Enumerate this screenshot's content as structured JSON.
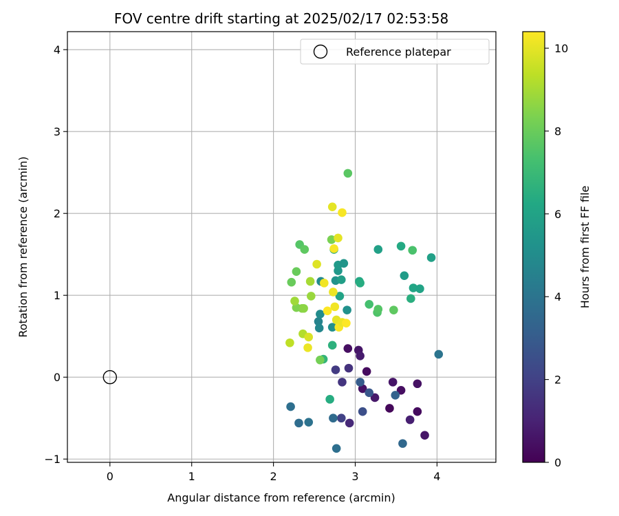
{
  "chart_data": {
    "type": "scatter",
    "title": "FOV centre drift starting at 2025/02/17 02:53:58",
    "xlabel": "Angular distance from reference (arcmin)",
    "ylabel": "Rotation from reference (arcmin)",
    "xlim": [
      -0.52,
      4.72
    ],
    "ylim": [
      -1.04,
      4.22
    ],
    "xticks": [
      0,
      1,
      2,
      3,
      4
    ],
    "yticks": [
      -1,
      0,
      1,
      2,
      3,
      4
    ],
    "xtick_labels": [
      "0",
      "1",
      "2",
      "3",
      "4"
    ],
    "ytick_labels": [
      "−1",
      "0",
      "1",
      "2",
      "3",
      "4"
    ],
    "grid": true,
    "legend": {
      "placement": "top-right",
      "label": "Reference platepar"
    },
    "reference_point": {
      "x": 0,
      "y": 0
    },
    "colorbar": {
      "label": "Hours from first FF file",
      "colormap": "viridis",
      "min": 0,
      "max": 10.4,
      "ticks": [
        0,
        2,
        4,
        6,
        8,
        10
      ],
      "tick_labels": [
        "0",
        "2",
        "4",
        "6",
        "8",
        "10"
      ]
    },
    "points": [
      {
        "x": 2.91,
        "y": 0.35,
        "c": 0.4
      },
      {
        "x": 3.04,
        "y": 0.33,
        "c": 0.6
      },
      {
        "x": 3.06,
        "y": 0.26,
        "c": 0.8
      },
      {
        "x": 3.14,
        "y": 0.07,
        "c": 0.3
      },
      {
        "x": 3.09,
        "y": -0.14,
        "c": 0.5
      },
      {
        "x": 3.24,
        "y": -0.25,
        "c": 0.7
      },
      {
        "x": 3.42,
        "y": -0.38,
        "c": 0.2
      },
      {
        "x": 3.46,
        "y": -0.06,
        "c": 0.6
      },
      {
        "x": 3.56,
        "y": -0.16,
        "c": 0.4
      },
      {
        "x": 3.76,
        "y": -0.08,
        "c": 0.5
      },
      {
        "x": 3.67,
        "y": -0.52,
        "c": 0.9
      },
      {
        "x": 3.76,
        "y": -0.42,
        "c": 0.3
      },
      {
        "x": 3.85,
        "y": -0.71,
        "c": 0.6
      },
      {
        "x": 2.76,
        "y": 0.09,
        "c": 1.8
      },
      {
        "x": 2.92,
        "y": 0.11,
        "c": 1.5
      },
      {
        "x": 2.84,
        "y": -0.06,
        "c": 1.6
      },
      {
        "x": 2.93,
        "y": -0.56,
        "c": 1.2
      },
      {
        "x": 2.83,
        "y": -0.5,
        "c": 2.0
      },
      {
        "x": 3.09,
        "y": -0.42,
        "c": 2.5
      },
      {
        "x": 3.17,
        "y": -0.19,
        "c": 2.8
      },
      {
        "x": 3.06,
        "y": -0.06,
        "c": 3.0
      },
      {
        "x": 3.49,
        "y": -0.22,
        "c": 3.3
      },
      {
        "x": 3.58,
        "y": -0.81,
        "c": 3.5
      },
      {
        "x": 2.21,
        "y": -0.36,
        "c": 3.8
      },
      {
        "x": 2.31,
        "y": -0.56,
        "c": 3.7
      },
      {
        "x": 2.43,
        "y": -0.55,
        "c": 3.9
      },
      {
        "x": 2.73,
        "y": -0.5,
        "c": 3.6
      },
      {
        "x": 2.77,
        "y": -0.87,
        "c": 3.8
      },
      {
        "x": 4.02,
        "y": 0.28,
        "c": 4.0
      },
      {
        "x": 2.55,
        "y": 0.68,
        "c": 4.6
      },
      {
        "x": 2.56,
        "y": 0.6,
        "c": 4.8
      },
      {
        "x": 2.57,
        "y": 0.77,
        "c": 5.0
      },
      {
        "x": 2.72,
        "y": 0.61,
        "c": 5.1
      },
      {
        "x": 2.9,
        "y": 0.82,
        "c": 5.2
      },
      {
        "x": 2.58,
        "y": 1.17,
        "c": 4.9
      },
      {
        "x": 2.76,
        "y": 1.18,
        "c": 5.3
      },
      {
        "x": 2.79,
        "y": 1.3,
        "c": 5.5
      },
      {
        "x": 2.79,
        "y": 1.37,
        "c": 5.6
      },
      {
        "x": 2.86,
        "y": 1.39,
        "c": 5.4
      },
      {
        "x": 2.83,
        "y": 1.19,
        "c": 5.8
      },
      {
        "x": 2.81,
        "y": 0.99,
        "c": 6.0
      },
      {
        "x": 3.05,
        "y": 1.17,
        "c": 6.2
      },
      {
        "x": 3.06,
        "y": 1.15,
        "c": 6.4
      },
      {
        "x": 3.28,
        "y": 1.56,
        "c": 5.9
      },
      {
        "x": 3.56,
        "y": 1.6,
        "c": 6.3
      },
      {
        "x": 3.6,
        "y": 1.24,
        "c": 5.7
      },
      {
        "x": 3.71,
        "y": 1.09,
        "c": 6.1
      },
      {
        "x": 3.79,
        "y": 1.08,
        "c": 6.0
      },
      {
        "x": 3.68,
        "y": 0.96,
        "c": 6.5
      },
      {
        "x": 3.93,
        "y": 1.46,
        "c": 5.9
      },
      {
        "x": 2.74,
        "y": 1.56,
        "c": 6.2
      },
      {
        "x": 2.69,
        "y": -0.27,
        "c": 6.4
      },
      {
        "x": 2.72,
        "y": 0.39,
        "c": 6.6
      },
      {
        "x": 2.61,
        "y": 0.22,
        "c": 6.8
      },
      {
        "x": 3.17,
        "y": 0.89,
        "c": 7.3
      },
      {
        "x": 3.27,
        "y": 0.79,
        "c": 7.5
      },
      {
        "x": 3.28,
        "y": 0.83,
        "c": 7.6
      },
      {
        "x": 3.47,
        "y": 0.82,
        "c": 7.8
      },
      {
        "x": 3.7,
        "y": 1.55,
        "c": 7.4
      },
      {
        "x": 2.91,
        "y": 2.49,
        "c": 7.7
      },
      {
        "x": 2.32,
        "y": 1.62,
        "c": 7.6
      },
      {
        "x": 2.38,
        "y": 1.56,
        "c": 7.8
      },
      {
        "x": 2.28,
        "y": 1.29,
        "c": 8.0
      },
      {
        "x": 2.22,
        "y": 1.16,
        "c": 8.0
      },
      {
        "x": 2.57,
        "y": 0.21,
        "c": 8.2
      },
      {
        "x": 2.71,
        "y": 1.68,
        "c": 8.3
      },
      {
        "x": 2.35,
        "y": 0.84,
        "c": 8.5
      },
      {
        "x": 2.28,
        "y": 0.85,
        "c": 8.4
      },
      {
        "x": 2.37,
        "y": 0.84,
        "c": 8.6
      },
      {
        "x": 2.26,
        "y": 0.93,
        "c": 8.9
      },
      {
        "x": 2.46,
        "y": 0.99,
        "c": 8.8
      },
      {
        "x": 2.45,
        "y": 1.17,
        "c": 9.0
      },
      {
        "x": 2.36,
        "y": 0.53,
        "c": 9.2
      },
      {
        "x": 2.2,
        "y": 0.42,
        "c": 9.4
      },
      {
        "x": 2.43,
        "y": 0.49,
        "c": 9.8
      },
      {
        "x": 2.42,
        "y": 0.36,
        "c": 10.1
      },
      {
        "x": 2.53,
        "y": 1.38,
        "c": 9.9
      },
      {
        "x": 2.62,
        "y": 1.15,
        "c": 10.2
      },
      {
        "x": 2.72,
        "y": 2.08,
        "c": 10.0
      },
      {
        "x": 2.84,
        "y": 2.01,
        "c": 10.3
      },
      {
        "x": 2.79,
        "y": 1.7,
        "c": 10.0
      },
      {
        "x": 2.74,
        "y": 1.57,
        "c": 10.3
      },
      {
        "x": 2.73,
        "y": 1.04,
        "c": 10.1
      },
      {
        "x": 2.75,
        "y": 0.86,
        "c": 10.2
      },
      {
        "x": 2.66,
        "y": 0.81,
        "c": 10.4
      },
      {
        "x": 2.77,
        "y": 0.7,
        "c": 10.0
      },
      {
        "x": 2.8,
        "y": 0.61,
        "c": 10.3
      },
      {
        "x": 2.84,
        "y": 0.67,
        "c": 10.1
      },
      {
        "x": 2.89,
        "y": 0.66,
        "c": 10.4
      }
    ]
  }
}
